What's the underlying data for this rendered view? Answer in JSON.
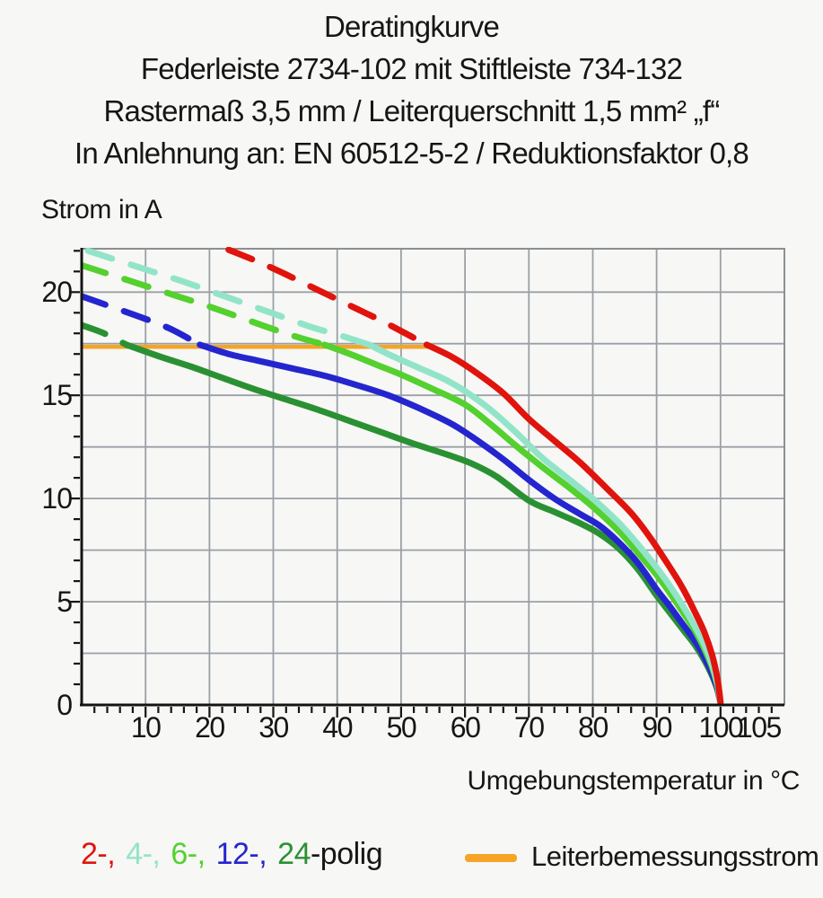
{
  "title": {
    "lines": [
      "Deratingkurve",
      "Federleiste 2734-102 mit Stiftleiste 734-132",
      "Rastermaß 3,5 mm / Leiterquerschnitt 1,5 mm² „f“",
      "In Anlehnung an: EN 60512-5-2 / Reduktionsfaktor 0,8"
    ]
  },
  "axes": {
    "y_title": "Strom in A",
    "x_title": "Umgebungstemperatur in °C"
  },
  "legend": {
    "poles_parts": [
      {
        "label": "2-,",
        "color": "#e0140c"
      },
      {
        "label": "4-,",
        "color": "#92e4c9"
      },
      {
        "label": "6-,",
        "color": "#54d02f"
      },
      {
        "label": "12-,",
        "color": "#2525cf"
      },
      {
        "label": "24",
        "color": "#2a9133"
      },
      {
        "label": "-polig",
        "color": "#161616"
      }
    ],
    "rated_label": "Leiterbemessungsstrom",
    "rated_color": "#f6a426"
  },
  "chart_data": {
    "type": "line",
    "title": "Deratingkurve",
    "xlabel": "Umgebungstemperatur in °C",
    "ylabel": "Strom in A",
    "xlim": [
      0,
      110
    ],
    "ylim": [
      0,
      22.1
    ],
    "x_ticks": [
      10,
      20,
      30,
      40,
      50,
      60,
      70,
      80,
      90,
      100,
      105
    ],
    "y_ticks": [
      0,
      5,
      10,
      15,
      20
    ],
    "x_grid_step": 10,
    "y_grid_step": 2.5,
    "x_minor_step": 2,
    "y_minor_step": 1,
    "grid_color": "#9aa0a6",
    "border_color": "#8a9095",
    "axis_color": "#141414",
    "note": "Curves are dashed above the rated conductor current line and solid below it",
    "rated_current_line": {
      "label": "Leiterbemessungsstrom",
      "current_A": 17.35,
      "x_from": 0,
      "x_to": 54.5,
      "color": "#f6a426"
    },
    "series": [
      {
        "name": "2-polig",
        "color": "#e0140c",
        "dashed_points": [
          [
            23,
            22.05
          ],
          [
            27,
            21.55
          ],
          [
            31,
            21.0
          ],
          [
            35,
            20.4
          ],
          [
            39,
            19.8
          ],
          [
            43,
            19.2
          ],
          [
            47,
            18.6
          ],
          [
            51,
            17.95
          ],
          [
            54,
            17.45
          ]
        ],
        "solid_points": [
          [
            54,
            17.45
          ],
          [
            58,
            16.85
          ],
          [
            62,
            16.05
          ],
          [
            66,
            15.1
          ],
          [
            70,
            13.85
          ],
          [
            74,
            12.8
          ],
          [
            78,
            11.75
          ],
          [
            82,
            10.55
          ],
          [
            86,
            9.3
          ],
          [
            89,
            8.1
          ],
          [
            92,
            6.7
          ],
          [
            94,
            5.7
          ],
          [
            96,
            4.5
          ],
          [
            97.5,
            3.5
          ],
          [
            98.7,
            2.4
          ],
          [
            99.5,
            1.3
          ],
          [
            100,
            0.15
          ]
        ]
      },
      {
        "name": "4-polig",
        "color": "#92e4c9",
        "dashed_points": [
          [
            1,
            22.0
          ],
          [
            6,
            21.5
          ],
          [
            11,
            21.0
          ],
          [
            16,
            20.5
          ],
          [
            21,
            19.95
          ],
          [
            26,
            19.4
          ],
          [
            31,
            18.85
          ],
          [
            36,
            18.3
          ],
          [
            41,
            17.85
          ],
          [
            45,
            17.45
          ]
        ],
        "solid_points": [
          [
            45,
            17.45
          ],
          [
            49,
            16.85
          ],
          [
            53,
            16.3
          ],
          [
            57,
            15.75
          ],
          [
            60,
            15.2
          ],
          [
            64,
            14.3
          ],
          [
            68,
            13.2
          ],
          [
            72,
            12.0
          ],
          [
            76,
            11.0
          ],
          [
            80,
            10.0
          ],
          [
            84,
            8.85
          ],
          [
            87,
            7.8
          ],
          [
            90,
            6.65
          ],
          [
            92,
            5.8
          ],
          [
            94,
            4.85
          ],
          [
            96,
            3.8
          ],
          [
            97.5,
            2.9
          ],
          [
            98.7,
            1.95
          ],
          [
            99.5,
            1.05
          ],
          [
            100,
            0.1
          ]
        ]
      },
      {
        "name": "6-polig",
        "color": "#54d02f",
        "dashed_points": [
          [
            0,
            21.3
          ],
          [
            5,
            20.8
          ],
          [
            10,
            20.3
          ],
          [
            15,
            19.8
          ],
          [
            20,
            19.3
          ],
          [
            25,
            18.75
          ],
          [
            30,
            18.2
          ],
          [
            34,
            17.8
          ],
          [
            38,
            17.45
          ]
        ],
        "solid_points": [
          [
            38,
            17.45
          ],
          [
            42,
            17.0
          ],
          [
            46,
            16.5
          ],
          [
            50,
            16.0
          ],
          [
            55,
            15.3
          ],
          [
            60,
            14.55
          ],
          [
            64,
            13.6
          ],
          [
            68,
            12.55
          ],
          [
            72,
            11.55
          ],
          [
            76,
            10.6
          ],
          [
            80,
            9.6
          ],
          [
            84,
            8.45
          ],
          [
            87,
            7.4
          ],
          [
            90,
            6.3
          ],
          [
            92,
            5.45
          ],
          [
            94,
            4.55
          ],
          [
            96,
            3.6
          ],
          [
            97.5,
            2.7
          ],
          [
            98.7,
            1.8
          ],
          [
            99.5,
            0.95
          ],
          [
            100,
            0.1
          ]
        ]
      },
      {
        "name": "12-polig",
        "color": "#2525cf",
        "dashed_points": [
          [
            0,
            19.8
          ],
          [
            5,
            19.25
          ],
          [
            10,
            18.7
          ],
          [
            14,
            18.2
          ],
          [
            18.5,
            17.45
          ]
        ],
        "solid_points": [
          [
            18.5,
            17.45
          ],
          [
            23,
            17.0
          ],
          [
            28,
            16.65
          ],
          [
            33,
            16.3
          ],
          [
            38,
            15.95
          ],
          [
            43,
            15.5
          ],
          [
            48,
            15.0
          ],
          [
            53,
            14.35
          ],
          [
            58,
            13.6
          ],
          [
            62,
            12.8
          ],
          [
            66,
            11.9
          ],
          [
            70,
            10.9
          ],
          [
            74,
            10.0
          ],
          [
            78,
            9.25
          ],
          [
            81,
            8.7
          ],
          [
            84,
            7.9
          ],
          [
            87,
            6.9
          ],
          [
            90,
            5.6
          ],
          [
            92,
            4.8
          ],
          [
            94,
            3.95
          ],
          [
            96,
            3.1
          ],
          [
            97.5,
            2.3
          ],
          [
            98.7,
            1.5
          ],
          [
            99.5,
            0.8
          ],
          [
            100,
            0.1
          ]
        ]
      },
      {
        "name": "24-polig",
        "color": "#2a9133",
        "dashed_points": [
          [
            0,
            18.4
          ],
          [
            3.5,
            18.0
          ],
          [
            7,
            17.45
          ]
        ],
        "solid_points": [
          [
            7,
            17.45
          ],
          [
            12,
            16.9
          ],
          [
            17,
            16.4
          ],
          [
            22,
            15.85
          ],
          [
            27,
            15.3
          ],
          [
            32,
            14.8
          ],
          [
            37,
            14.3
          ],
          [
            42,
            13.75
          ],
          [
            47,
            13.2
          ],
          [
            52,
            12.65
          ],
          [
            57,
            12.15
          ],
          [
            61,
            11.7
          ],
          [
            65,
            11.05
          ],
          [
            70,
            9.9
          ],
          [
            74,
            9.35
          ],
          [
            78,
            8.8
          ],
          [
            81,
            8.3
          ],
          [
            84,
            7.6
          ],
          [
            87,
            6.6
          ],
          [
            90,
            5.3
          ],
          [
            92,
            4.5
          ],
          [
            94,
            3.7
          ],
          [
            96,
            2.9
          ],
          [
            97.5,
            2.15
          ],
          [
            98.7,
            1.4
          ],
          [
            99.5,
            0.75
          ],
          [
            100,
            0.1
          ]
        ]
      }
    ]
  }
}
